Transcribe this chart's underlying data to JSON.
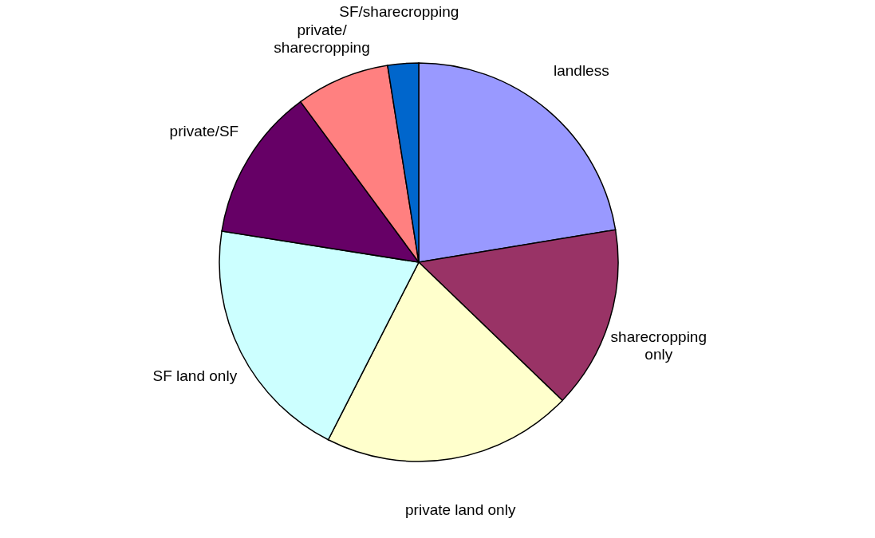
{
  "chart_data": {
    "type": "pie",
    "categories": [
      "landless",
      "sharecropping only",
      "private land only",
      "SF land only",
      "private/SF",
      "private/sharecropping",
      "SF/sharecropping"
    ],
    "values": [
      22.4,
      14.8,
      20.3,
      20.0,
      12.4,
      7.6,
      2.5
    ],
    "colors": [
      "#9999ff",
      "#993366",
      "#ffffcc",
      "#ccffff",
      "#660066",
      "#ff8080",
      "#0066cc"
    ],
    "legend": false
  }
}
